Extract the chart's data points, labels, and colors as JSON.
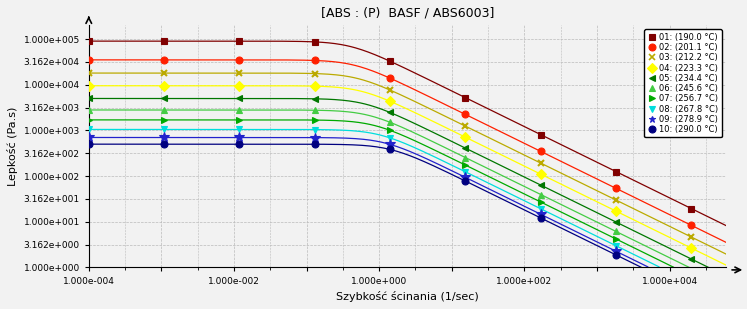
{
  "title": "[ABS : (P)  BASF / ABS6003]",
  "xlabel": "Szybkość ścinania (1/sec)",
  "ylabel": "Lepkość (Pa.s)",
  "xmin": 0.0001,
  "xmax": 60000.0,
  "ymin": 1.0,
  "ymax": 200000.0,
  "series": [
    {
      "label": "01: (190.0 °C)",
      "color": "#800000",
      "marker": "s",
      "eta0": 90000,
      "lam": 2.5,
      "n": 0.22
    },
    {
      "label": "02: (201.1 °C)",
      "color": "#FF2000",
      "marker": "o",
      "eta0": 35000,
      "lam": 2.2,
      "n": 0.22
    },
    {
      "label": "03: (212.2 °C)",
      "color": "#BBAA00",
      "marker": "x",
      "eta0": 18000,
      "lam": 2.0,
      "n": 0.22
    },
    {
      "label": "04: (223.3 °C)",
      "color": "#FFFF00",
      "marker": "D",
      "eta0": 9500,
      "lam": 1.8,
      "n": 0.22
    },
    {
      "label": "05: (234.4 °C)",
      "color": "#007700",
      "marker": "<",
      "eta0": 5000,
      "lam": 1.6,
      "n": 0.22
    },
    {
      "label": "06: (245.6 °C)",
      "color": "#44CC44",
      "marker": "^",
      "eta0": 2800,
      "lam": 1.4,
      "n": 0.22
    },
    {
      "label": "07: (256.7 °C)",
      "color": "#00AA00",
      "marker": ">",
      "eta0": 1700,
      "lam": 1.2,
      "n": 0.22
    },
    {
      "label": "08: (267.8 °C)",
      "color": "#00DDDD",
      "marker": "v",
      "eta0": 1050,
      "lam": 1.0,
      "n": 0.22
    },
    {
      "label": "09: (278.9 °C)",
      "color": "#2222CC",
      "marker": "*",
      "eta0": 700,
      "lam": 0.85,
      "n": 0.22
    },
    {
      "label": "10: (290.0 °C)",
      "color": "#000080",
      "marker": "o",
      "eta0": 500,
      "lam": 0.7,
      "n": 0.22
    }
  ],
  "bg_color": "#f2f2f2",
  "grid_color": "#bbbbbb"
}
